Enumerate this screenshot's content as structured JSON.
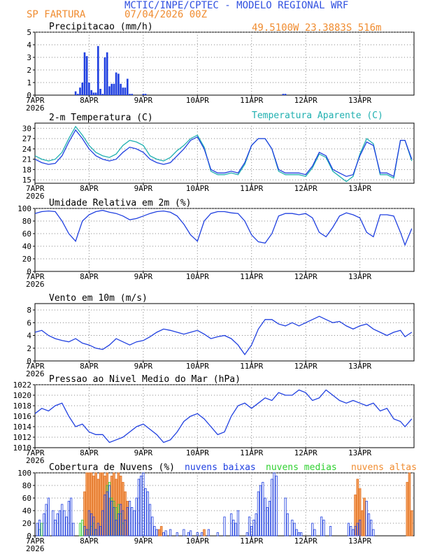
{
  "header": {
    "agency": "MCTIC/INPE/CPTEC - MODELO REGIONAL WRF",
    "location": "SP FARTURA",
    "run": "07/04/2026 00Z",
    "coords": "49.5100W 23.3883S 516m"
  },
  "colors": {
    "header_blue": "#3050e0",
    "header_orange": "#f08c30",
    "series_blue": "#2040e0",
    "apparent_cyan": "#20b0b0",
    "mid_clouds": "#30d030",
    "high_clouds": "#f5a060"
  },
  "x_ticks": [
    "7APR",
    "8APR",
    "9APR",
    "10APR",
    "11APR",
    "12APR",
    "13APR"
  ],
  "x_year": "2026",
  "chart_data": [
    {
      "type": "bar",
      "title": "Precipitacao (mm/h)",
      "ylim": [
        0,
        5
      ],
      "yticks": [
        0,
        1,
        2,
        3,
        4,
        5
      ],
      "hours": [
        18,
        19,
        20,
        21,
        22,
        23,
        24,
        25,
        26,
        27,
        28,
        29,
        30,
        31,
        32,
        33,
        34,
        35,
        36,
        37,
        38,
        39,
        40,
        41,
        42,
        43,
        48,
        49,
        110,
        111
      ],
      "values": [
        0.3,
        0.1,
        0.6,
        1.0,
        3.4,
        3.1,
        1.0,
        0.4,
        0.2,
        0.2,
        3.9,
        0.5,
        0.1,
        3.0,
        3.4,
        0.7,
        0.9,
        0.9,
        1.8,
        1.7,
        0.9,
        0.6,
        0.6,
        1.3,
        0.1,
        0.1,
        0.1,
        0.1,
        0.1,
        0.1
      ]
    },
    {
      "type": "line",
      "title": "2-m Temperatura (C)",
      "legend": "Temperatura Aparente (C)",
      "ylim": [
        14,
        31.5
      ],
      "yticks": [
        15,
        18,
        21,
        24,
        27,
        30
      ],
      "series": [
        {
          "name": "2-m Temperatura (C)",
          "x": [
            0,
            3,
            6,
            9,
            12,
            15,
            18,
            21,
            24,
            27,
            30,
            33,
            36,
            39,
            42,
            45,
            48,
            51,
            54,
            57,
            60,
            63,
            66,
            69,
            72,
            75,
            78,
            81,
            84,
            87,
            90,
            93,
            96,
            99,
            102,
            105,
            108,
            111,
            114,
            117,
            120,
            123,
            126,
            129,
            132,
            135,
            138,
            141,
            144,
            147,
            150,
            153,
            156,
            159,
            162,
            164,
            167
          ],
          "y": [
            21,
            20,
            19.5,
            19.8,
            22,
            26,
            29.5,
            27,
            24,
            22,
            21,
            20.5,
            21,
            23,
            24.5,
            24,
            23,
            21,
            20,
            19.5,
            20,
            22,
            24,
            26.5,
            27.5,
            24,
            18,
            17,
            17,
            17.5,
            17,
            20,
            25,
            27,
            27,
            24,
            18,
            17,
            17,
            17,
            16.5,
            19,
            23,
            22,
            18,
            17,
            16,
            16.5,
            22,
            26,
            25,
            17,
            17,
            16,
            26.5,
            26.5,
            21
          ]
        },
        {
          "name": "Temperatura Aparente (C)",
          "x": [
            0,
            3,
            6,
            9,
            12,
            15,
            18,
            21,
            24,
            27,
            30,
            33,
            36,
            39,
            42,
            45,
            48,
            51,
            54,
            57,
            60,
            63,
            66,
            69,
            72,
            75,
            78,
            81,
            84,
            87,
            90,
            93,
            96,
            99,
            102,
            105,
            108,
            111,
            114,
            117,
            120,
            123,
            126,
            129,
            132,
            135,
            138,
            141,
            144,
            147,
            150,
            153,
            156,
            159,
            162,
            164,
            167
          ],
          "y": [
            22,
            21,
            20.5,
            21,
            23,
            27,
            30.5,
            28,
            25,
            23,
            22,
            21.5,
            22.5,
            25,
            26.5,
            26,
            25,
            22,
            21,
            20.5,
            21.5,
            23.5,
            25,
            27,
            28,
            24.5,
            17.5,
            16.5,
            16.5,
            17,
            16.5,
            19.5,
            25,
            27,
            27,
            24,
            17.5,
            16.5,
            16.5,
            16.5,
            16,
            18.5,
            22.5,
            21.5,
            17.5,
            16,
            14.5,
            16,
            22.5,
            27,
            25.5,
            16.5,
            16.5,
            15.5,
            26.5,
            26.5,
            20.5
          ]
        }
      ]
    },
    {
      "type": "line",
      "title": "Umidade Relativa em 2m (%)",
      "ylim": [
        0,
        100
      ],
      "yticks": [
        0,
        20,
        40,
        60,
        80,
        100
      ],
      "x": [
        0,
        3,
        6,
        9,
        12,
        15,
        18,
        21,
        24,
        27,
        30,
        33,
        36,
        39,
        42,
        45,
        48,
        51,
        54,
        57,
        60,
        63,
        66,
        69,
        72,
        75,
        78,
        81,
        84,
        87,
        90,
        93,
        96,
        99,
        102,
        105,
        108,
        111,
        114,
        117,
        120,
        123,
        126,
        129,
        132,
        135,
        138,
        141,
        144,
        147,
        150,
        153,
        156,
        159,
        162,
        164,
        167
      ],
      "y": [
        92,
        95,
        96,
        95,
        80,
        60,
        48,
        80,
        90,
        95,
        97,
        94,
        92,
        88,
        82,
        84,
        88,
        92,
        95,
        96,
        94,
        88,
        75,
        58,
        48,
        80,
        92,
        95,
        95,
        93,
        92,
        80,
        58,
        47,
        45,
        60,
        88,
        92,
        92,
        90,
        92,
        85,
        62,
        55,
        70,
        88,
        93,
        90,
        85,
        62,
        55,
        90,
        90,
        88,
        62,
        42,
        68
      ]
    },
    {
      "type": "line",
      "title": "Vento em 10m (m/s)",
      "ylim": [
        0,
        9
      ],
      "yticks": [
        0,
        2,
        4,
        6,
        8
      ],
      "x": [
        0,
        3,
        6,
        9,
        12,
        15,
        18,
        21,
        24,
        27,
        30,
        33,
        36,
        39,
        42,
        45,
        48,
        51,
        54,
        57,
        60,
        63,
        66,
        69,
        72,
        75,
        78,
        81,
        84,
        87,
        90,
        93,
        96,
        99,
        102,
        105,
        108,
        111,
        114,
        117,
        120,
        123,
        126,
        129,
        132,
        135,
        138,
        141,
        144,
        147,
        150,
        153,
        156,
        159,
        162,
        164,
        167
      ],
      "y": [
        4.5,
        4.8,
        4.0,
        3.5,
        3.2,
        3.0,
        3.5,
        2.8,
        2.5,
        2.0,
        1.8,
        2.5,
        3.5,
        3.0,
        2.5,
        3.0,
        3.2,
        3.8,
        4.5,
        5.0,
        4.8,
        4.5,
        4.2,
        4.5,
        4.8,
        4.2,
        3.5,
        3.8,
        4.0,
        3.5,
        2.5,
        1.0,
        2.5,
        5.0,
        6.5,
        6.5,
        5.8,
        5.5,
        6.0,
        5.5,
        6.0,
        6.5,
        7.0,
        6.5,
        6.0,
        6.2,
        5.5,
        5.0,
        5.5,
        5.8,
        5.0,
        4.5,
        4.0,
        4.5,
        4.8,
        3.8,
        4.5
      ]
    },
    {
      "type": "line",
      "title": "Pressao ao Nivel Medio do Mar (hPa)",
      "ylim": [
        1010,
        1022
      ],
      "yticks": [
        1010,
        1012,
        1014,
        1016,
        1018,
        1020,
        1022
      ],
      "x": [
        0,
        3,
        6,
        9,
        12,
        15,
        18,
        21,
        24,
        27,
        30,
        33,
        36,
        39,
        42,
        45,
        48,
        51,
        54,
        57,
        60,
        63,
        66,
        69,
        72,
        75,
        78,
        81,
        84,
        87,
        90,
        93,
        96,
        99,
        102,
        105,
        108,
        111,
        114,
        117,
        120,
        123,
        126,
        129,
        132,
        135,
        138,
        141,
        144,
        147,
        150,
        153,
        156,
        159,
        162,
        164,
        167
      ],
      "y": [
        1016.5,
        1017.5,
        1017.0,
        1018.0,
        1018.5,
        1016.0,
        1014.0,
        1014.5,
        1013.0,
        1012.5,
        1012.5,
        1011.0,
        1011.5,
        1012.0,
        1013.0,
        1014.0,
        1014.5,
        1013.5,
        1012.5,
        1011.0,
        1011.5,
        1013.0,
        1015.0,
        1016.0,
        1016.5,
        1015.5,
        1014.0,
        1012.5,
        1013.0,
        1016.0,
        1018.0,
        1018.5,
        1017.5,
        1018.5,
        1019.5,
        1019.0,
        1020.5,
        1020.0,
        1020.0,
        1021.0,
        1020.5,
        1019.0,
        1019.5,
        1021.0,
        1020.0,
        1019.0,
        1018.5,
        1019.0,
        1018.5,
        1018.0,
        1018.5,
        1017.0,
        1017.5,
        1015.5,
        1015.0,
        1014.0,
        1015.5
      ]
    },
    {
      "type": "bar",
      "title": "Cobertura de Nuvens (%)",
      "legend": [
        "nuvens baixas",
        "nuvens medias",
        "nuvens altas"
      ],
      "ylim": [
        0,
        100
      ],
      "yticks": [
        0,
        20,
        40,
        60,
        80,
        100
      ],
      "series": [
        {
          "name": "nuvens baixas",
          "x": [
            1,
            2,
            4,
            5,
            6,
            8,
            9,
            10,
            11,
            12,
            13,
            14,
            15,
            16,
            17,
            22,
            23,
            24,
            25,
            26,
            27,
            28,
            29,
            30,
            31,
            32,
            33,
            34,
            35,
            36,
            37,
            38,
            39,
            40,
            41,
            42,
            43,
            44,
            45,
            46,
            47,
            48,
            49,
            50,
            51,
            52,
            53,
            54,
            57,
            58,
            60,
            63,
            66,
            68,
            69,
            72,
            74,
            77,
            81,
            84,
            87,
            88,
            89,
            90,
            94,
            95,
            96,
            97,
            98,
            99,
            100,
            101,
            102,
            103,
            104,
            105,
            106,
            107,
            111,
            112,
            114,
            115,
            116,
            117,
            118,
            123,
            124,
            127,
            128,
            131,
            139,
            140,
            141,
            142,
            143,
            144,
            147,
            148,
            149,
            150
          ],
          "y": [
            20,
            25,
            35,
            50,
            60,
            40,
            25,
            35,
            40,
            50,
            40,
            30,
            55,
            60,
            20,
            15,
            10,
            40,
            35,
            30,
            10,
            20,
            15,
            40,
            65,
            70,
            80,
            55,
            45,
            25,
            35,
            50,
            40,
            25,
            45,
            55,
            45,
            40,
            60,
            90,
            95,
            100,
            75,
            70,
            50,
            30,
            15,
            10,
            5,
            8,
            10,
            5,
            10,
            5,
            8,
            5,
            5,
            10,
            5,
            30,
            35,
            25,
            20,
            40,
            5,
            30,
            15,
            25,
            35,
            70,
            80,
            85,
            60,
            45,
            55,
            90,
            100,
            95,
            60,
            35,
            25,
            20,
            10,
            5,
            5,
            20,
            10,
            30,
            25,
            15,
            20,
            15,
            10,
            15,
            20,
            25,
            55,
            35,
            25,
            10
          ]
        },
        {
          "name": "nuvens medias",
          "x": [
            2,
            3,
            20,
            21,
            24,
            25,
            26,
            27,
            32,
            33,
            34,
            35,
            36,
            37,
            38,
            39
          ],
          "y": [
            10,
            20,
            20,
            25,
            10,
            15,
            20,
            10,
            80,
            85,
            60,
            55,
            45,
            50,
            35,
            20
          ]
        },
        {
          "name": "nuvens altas",
          "x": [
            22,
            23,
            24,
            25,
            26,
            27,
            28,
            29,
            30,
            31,
            32,
            33,
            34,
            35,
            36,
            37,
            38,
            39,
            40,
            41,
            55,
            56,
            75,
            142,
            143,
            144,
            145,
            146,
            165,
            166,
            167
          ],
          "y": [
            70,
            100,
            100,
            100,
            95,
            100,
            90,
            100,
            100,
            95,
            100,
            60,
            95,
            100,
            90,
            100,
            95,
            85,
            70,
            55,
            10,
            15,
            10,
            65,
            90,
            75,
            40,
            60,
            85,
            100,
            40
          ]
        }
      ]
    }
  ]
}
